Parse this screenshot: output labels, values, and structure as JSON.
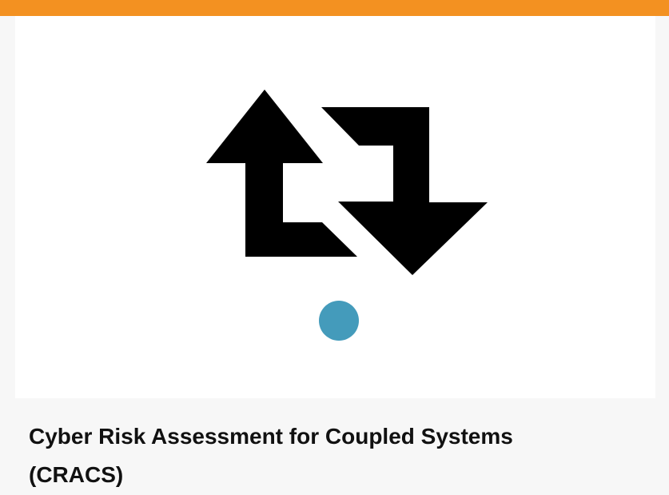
{
  "card": {
    "title": "Cyber Risk Assessment for Coupled Systems\n(CRACS)"
  },
  "colors": {
    "top_bar": "#f39121",
    "page_background": "#f7f7f7",
    "image_background": "#ffffff",
    "logo_arrows": "#000000",
    "logo_dot": "#449bbb",
    "title_text": "#111111"
  },
  "icons": {
    "logo": "bidirectional-arrow-logo",
    "dot": "status-dot"
  }
}
